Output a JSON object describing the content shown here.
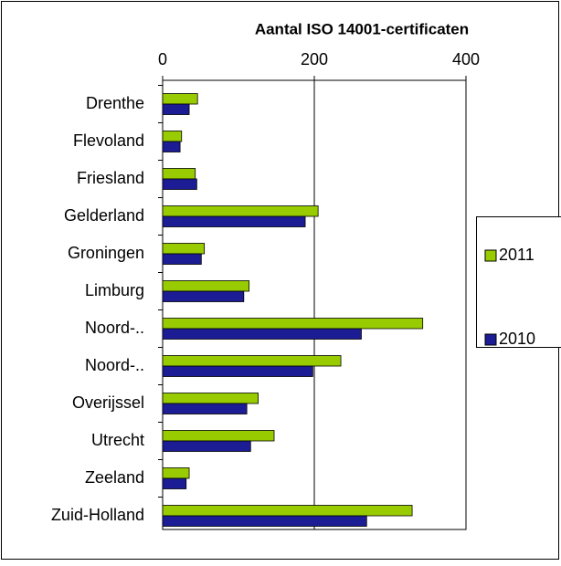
{
  "chart_data": {
    "type": "barh",
    "title": "Aantal ISO 14001-certificaten",
    "categories": [
      "Drenthe",
      "Flevoland",
      "Friesland",
      "Gelderland",
      "Groningen",
      "Limburg",
      "Noord-..",
      "Noord-..",
      "Overijssel",
      "Utrecht",
      "Zeeland",
      "Zuid-Holland"
    ],
    "series": [
      {
        "name": "2011",
        "color": "#99cc00",
        "values": [
          46,
          25,
          43,
          205,
          55,
          114,
          343,
          235,
          126,
          147,
          35,
          329
        ]
      },
      {
        "name": "2010",
        "color": "#1c1c94",
        "values": [
          35,
          23,
          45,
          188,
          51,
          107,
          262,
          198,
          111,
          116,
          31,
          269
        ]
      }
    ],
    "xlim": [
      0,
      400
    ],
    "xticks": [
      0,
      200,
      400
    ],
    "grid": true,
    "legend": "right"
  }
}
